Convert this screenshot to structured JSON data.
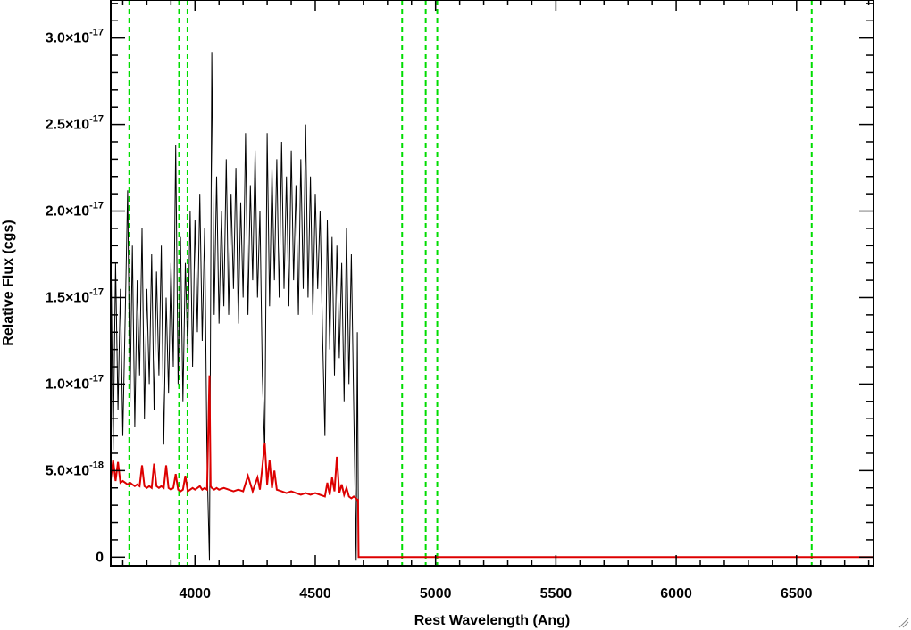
{
  "chart_data": {
    "type": "line",
    "title": "",
    "xlabel": "Rest Wavelength (Ang)",
    "ylabel": "Relative Flux (cgs)",
    "xlim": [
      3650,
      6820
    ],
    "ylim": [
      -5e-19,
      3.22e-17
    ],
    "x_ticks": [
      {
        "value": 4000,
        "label": "4000"
      },
      {
        "value": 4500,
        "label": "4500"
      },
      {
        "value": 5000,
        "label": "5000"
      },
      {
        "value": 5500,
        "label": "5500"
      },
      {
        "value": 6000,
        "label": "6000"
      },
      {
        "value": 6500,
        "label": "6500"
      }
    ],
    "y_ticks": [
      {
        "value": 0,
        "mant": "0",
        "exp": ""
      },
      {
        "value": 5e-18,
        "mant": "5.0×10",
        "exp": "-18"
      },
      {
        "value": 1e-17,
        "mant": "1.0×10",
        "exp": "-17"
      },
      {
        "value": 1.5e-17,
        "mant": "1.5×10",
        "exp": "-17"
      },
      {
        "value": 2e-17,
        "mant": "2.0×10",
        "exp": "-17"
      },
      {
        "value": 2.5e-17,
        "mant": "2.5×10",
        "exp": "-17"
      },
      {
        "value": 3e-17,
        "mant": "3.0×10",
        "exp": "-17"
      }
    ],
    "vlines": [
      3727,
      3934,
      3969,
      4861,
      4959,
      5007,
      6563
    ],
    "grid": false,
    "series": [
      {
        "color": "#000000",
        "x": [
          3650,
          3660,
          3670,
          3680,
          3690,
          3700,
          3710,
          3720,
          3730,
          3740,
          3750,
          3760,
          3770,
          3780,
          3790,
          3800,
          3810,
          3820,
          3830,
          3840,
          3850,
          3860,
          3870,
          3880,
          3890,
          3900,
          3910,
          3920,
          3930,
          3940,
          3950,
          3960,
          3970,
          3980,
          3990,
          4000,
          4010,
          4020,
          4030,
          4040,
          4050,
          4060,
          4070,
          4080,
          4090,
          4100,
          4110,
          4120,
          4130,
          4140,
          4150,
          4160,
          4170,
          4180,
          4190,
          4200,
          4210,
          4220,
          4230,
          4240,
          4250,
          4260,
          4270,
          4280,
          4290,
          4300,
          4310,
          4320,
          4330,
          4340,
          4350,
          4360,
          4370,
          4380,
          4390,
          4400,
          4410,
          4420,
          4430,
          4440,
          4450,
          4460,
          4470,
          4480,
          4490,
          4500,
          4510,
          4520,
          4530,
          4540,
          4550,
          4560,
          4570,
          4580,
          4590,
          4600,
          4610,
          4620,
          4630,
          4640,
          4650,
          4660,
          4670,
          4675,
          4680,
          5000,
          5500,
          6000,
          6500,
          6820
        ],
        "y": [
          1.85e-17,
          6.2e-18,
          1.7e-17,
          8.5e-18,
          1.55e-17,
          7e-18,
          1.4e-17,
          2.12e-17,
          9e-18,
          1.8e-17,
          7.5e-18,
          1.6e-17,
          1.05e-17,
          1.9e-17,
          8e-18,
          1.55e-17,
          1e-17,
          1.75e-17,
          8.5e-18,
          1.65e-17,
          1.05e-17,
          1.8e-17,
          6.5e-18,
          1.5e-17,
          9.5e-18,
          1.7e-17,
          1.1e-17,
          2.38e-17,
          1e-17,
          1.85e-17,
          9e-18,
          1.7e-17,
          1.2e-17,
          2e-17,
          1.1e-17,
          1.95e-17,
          1.3e-17,
          2.1e-17,
          1.25e-17,
          1.9e-17,
          5.5e-18,
          -2e-19,
          2.92e-17,
          1.4e-17,
          2.2e-17,
          1.35e-17,
          2e-17,
          1.45e-17,
          2.3e-17,
          1.4e-17,
          2.1e-17,
          1.55e-17,
          2.25e-17,
          1.35e-17,
          2.05e-17,
          1.5e-17,
          2.45e-17,
          1.4e-17,
          2.15e-17,
          1.6e-17,
          2.35e-17,
          1.5e-17,
          2e-17,
          1.05e-17,
          6e-18,
          2.45e-17,
          1.45e-17,
          2.25e-17,
          1.6e-17,
          2.3e-17,
          1.5e-17,
          2.4e-17,
          1.55e-17,
          2.2e-17,
          1.45e-17,
          2.35e-17,
          1.6e-17,
          2.15e-17,
          1.4e-17,
          2.3e-17,
          1.55e-17,
          2.5e-17,
          1.5e-17,
          2.2e-17,
          1.4e-17,
          2.1e-17,
          1.55e-17,
          2e-17,
          1.3e-17,
          7e-18,
          1.95e-17,
          1.2e-17,
          1.85e-17,
          1.05e-17,
          1.8e-17,
          1.15e-17,
          1.7e-17,
          9e-18,
          1.9e-17,
          1e-17,
          1.75e-17,
          8.5e-18,
          -2e-19,
          1.3e-17,
          0,
          0,
          0,
          0,
          0,
          0
        ],
        "line_width": 1
      },
      {
        "color": "#dd0000",
        "x": [
          3650,
          3660,
          3670,
          3680,
          3690,
          3700,
          3710,
          3720,
          3730,
          3740,
          3750,
          3760,
          3770,
          3780,
          3790,
          3800,
          3810,
          3820,
          3830,
          3840,
          3850,
          3860,
          3870,
          3880,
          3890,
          3900,
          3910,
          3920,
          3930,
          3940,
          3950,
          3960,
          3970,
          3980,
          3990,
          4000,
          4010,
          4020,
          4030,
          4040,
          4050,
          4060,
          4065,
          4070,
          4080,
          4090,
          4100,
          4120,
          4140,
          4160,
          4180,
          4200,
          4220,
          4240,
          4260,
          4270,
          4280,
          4290,
          4300,
          4310,
          4320,
          4330,
          4340,
          4360,
          4380,
          4400,
          4420,
          4440,
          4460,
          4480,
          4500,
          4520,
          4540,
          4550,
          4560,
          4570,
          4580,
          4590,
          4600,
          4610,
          4620,
          4630,
          4640,
          4650,
          4660,
          4670,
          4675,
          4678,
          4680,
          5000,
          5500,
          6000,
          6500,
          6820
        ],
        "y": [
          4.5e-18,
          5.6e-18,
          4.4e-18,
          5.5e-18,
          4.3e-18,
          4.4e-18,
          4.3e-18,
          4.2e-18,
          4.3e-18,
          4.2e-18,
          4.1e-18,
          4.2e-18,
          4.1e-18,
          5.3e-18,
          4.1e-18,
          4e-18,
          4.1e-18,
          4e-18,
          5.4e-18,
          4.1e-18,
          4e-18,
          4.1e-18,
          4e-18,
          5.3e-18,
          4e-18,
          3.9e-18,
          4e-18,
          4.8e-18,
          3.9e-18,
          3.8e-18,
          3.9e-18,
          4.7e-18,
          3.8e-18,
          3.9e-18,
          4e-18,
          3.9e-18,
          4e-18,
          4.1e-18,
          3.9e-18,
          4e-18,
          3.9e-18,
          1.05e-17,
          4.1e-18,
          4e-18,
          3.9e-18,
          4e-18,
          3.9e-18,
          4e-18,
          3.9e-18,
          3.8e-18,
          3.9e-18,
          3.8e-18,
          4.7e-18,
          3.8e-18,
          4.6e-18,
          3.9e-18,
          5.2e-18,
          6.6e-18,
          4.2e-18,
          5.6e-18,
          4e-18,
          5e-18,
          3.9e-18,
          3.8e-18,
          3.7e-18,
          3.8e-18,
          3.7e-18,
          3.6e-18,
          3.7e-18,
          3.6e-18,
          3.7e-18,
          3.6e-18,
          3.5e-18,
          4.3e-18,
          3.6e-18,
          4.6e-18,
          3.8e-18,
          5.8e-18,
          3.7e-18,
          4.2e-18,
          3.6e-18,
          4e-18,
          3.5e-18,
          3.4e-18,
          3.5e-18,
          3.4e-18,
          3.3e-18,
          3.3e-18,
          0,
          0,
          0,
          0,
          0,
          0
        ],
        "line_width": 2
      }
    ]
  }
}
